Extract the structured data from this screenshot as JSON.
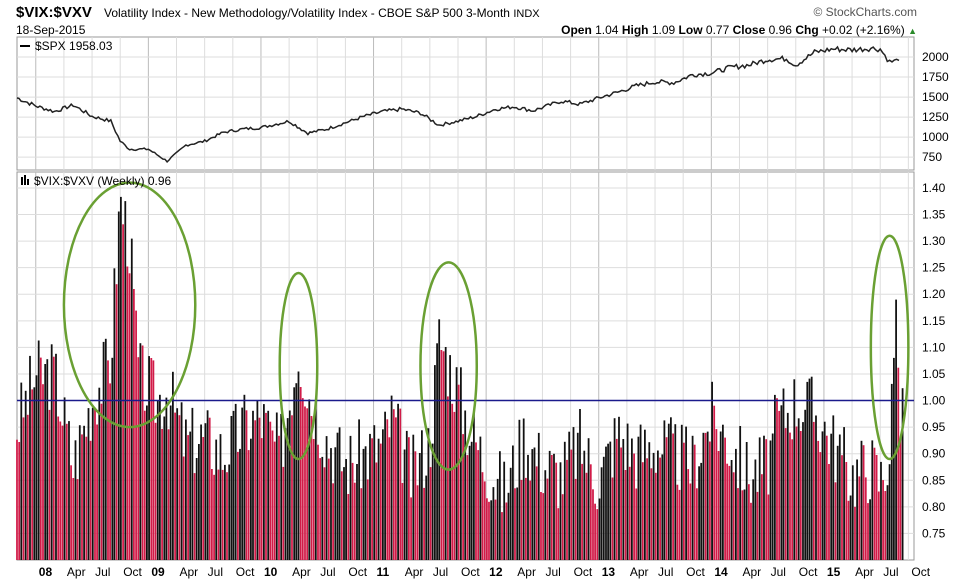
{
  "header": {
    "symbol": "$VIX:$VXV",
    "description": "Volatility Index - New Methodology/Volatility Index - CBOE S&P 500 3-Month",
    "exchange": "INDX",
    "date": "18-Sep-2015",
    "brand": "© StockCharts.com",
    "open_label": "Open",
    "open": "1.04",
    "high_label": "High",
    "high": "1.09",
    "low_label": "Low",
    "low": "0.77",
    "close_label": "Close",
    "close": "0.96",
    "chg_label": "Chg",
    "chg": "+0.02 (+2.16%)",
    "chg_arrow": "▲"
  },
  "colors": {
    "up": "#111111",
    "down": "#d11b48",
    "line": "#222222",
    "ref_line": "#1a1a8c",
    "circle": "#6aa033",
    "grid": "#dddddd"
  },
  "chart_data": [
    {
      "type": "line",
      "legend": "$SPX 1958.03",
      "y_ticks": [
        750,
        1000,
        1250,
        1500,
        1750,
        2000
      ],
      "ylim": [
        640,
        2200
      ],
      "x_range": [
        "2007-11",
        "2015-10"
      ],
      "x": [
        "2007-11",
        "2008-01",
        "2008-03",
        "2008-05",
        "2008-07",
        "2008-09",
        "2008-10",
        "2008-11",
        "2009-01",
        "2009-03",
        "2009-05",
        "2009-07",
        "2009-09",
        "2009-11",
        "2010-01",
        "2010-04",
        "2010-06",
        "2010-08",
        "2010-10",
        "2010-12",
        "2011-02",
        "2011-04",
        "2011-06",
        "2011-08",
        "2011-10",
        "2011-12",
        "2012-02",
        "2012-04",
        "2012-06",
        "2012-09",
        "2012-11",
        "2013-01",
        "2013-03",
        "2013-05",
        "2013-07",
        "2013-09",
        "2013-11",
        "2014-01",
        "2014-03",
        "2014-05",
        "2014-07",
        "2014-09",
        "2014-10",
        "2014-12",
        "2015-02",
        "2015-04",
        "2015-06",
        "2015-07",
        "2015-08",
        "2015-09"
      ],
      "values": [
        1490,
        1390,
        1320,
        1400,
        1260,
        1200,
        950,
        850,
        850,
        700,
        900,
        950,
        1060,
        1100,
        1120,
        1200,
        1050,
        1100,
        1180,
        1260,
        1320,
        1350,
        1300,
        1150,
        1200,
        1260,
        1350,
        1380,
        1330,
        1450,
        1410,
        1490,
        1560,
        1640,
        1690,
        1680,
        1780,
        1800,
        1870,
        1900,
        1970,
        1980,
        1900,
        2060,
        2100,
        2090,
        2110,
        2100,
        1940,
        1958
      ]
    },
    {
      "type": "bar",
      "legend": "$VIX:$VXV (Weekly) 0.96",
      "last_value": 0.96,
      "y_ticks": [
        0.75,
        0.8,
        0.85,
        0.9,
        0.95,
        1.0,
        1.05,
        1.1,
        1.15,
        1.2,
        1.25,
        1.3,
        1.35,
        1.4
      ],
      "ylim": [
        0.7,
        1.43
      ],
      "reference_line": 1.0,
      "x_labels": [
        "08",
        "Apr",
        "Jul",
        "Oct",
        "09",
        "Apr",
        "Jul",
        "Oct",
        "10",
        "Apr",
        "Jul",
        "Oct",
        "11",
        "Apr",
        "Jul",
        "Oct",
        "12",
        "Apr",
        "Jul",
        "Oct",
        "13",
        "Apr",
        "Jul",
        "Oct",
        "14",
        "Apr",
        "Jul",
        "Oct",
        "15",
        "Apr",
        "Jul",
        "Oct"
      ],
      "bold_x_labels": [
        "08",
        "09",
        "10",
        "11",
        "12",
        "13",
        "14",
        "15"
      ],
      "x_range": [
        "2007-11",
        "2015-10"
      ],
      "week_anchors": [
        {
          "date": "2007-11",
          "v": 0.95
        },
        {
          "date": "2008-01",
          "v": 1.05
        },
        {
          "date": "2008-03",
          "v": 1.05
        },
        {
          "date": "2008-05",
          "v": 0.88
        },
        {
          "date": "2008-07",
          "v": 1.0
        },
        {
          "date": "2008-09",
          "v": 1.08
        },
        {
          "date": "2008-10",
          "v": 1.38
        },
        {
          "date": "2008-11",
          "v": 1.3
        },
        {
          "date": "2008-12",
          "v": 1.05
        },
        {
          "date": "2009-02",
          "v": 1.0
        },
        {
          "date": "2009-03",
          "v": 1.02
        },
        {
          "date": "2009-05",
          "v": 0.92
        },
        {
          "date": "2009-07",
          "v": 0.93
        },
        {
          "date": "2009-09",
          "v": 0.9
        },
        {
          "date": "2009-11",
          "v": 0.95
        },
        {
          "date": "2010-01",
          "v": 0.97
        },
        {
          "date": "2010-03",
          "v": 0.9
        },
        {
          "date": "2010-05",
          "v": 1.1
        },
        {
          "date": "2010-06",
          "v": 1.02
        },
        {
          "date": "2010-08",
          "v": 0.93
        },
        {
          "date": "2010-10",
          "v": 0.88
        },
        {
          "date": "2010-12",
          "v": 0.9
        },
        {
          "date": "2011-02",
          "v": 0.92
        },
        {
          "date": "2011-03",
          "v": 0.97
        },
        {
          "date": "2011-05",
          "v": 0.86
        },
        {
          "date": "2011-07",
          "v": 0.92
        },
        {
          "date": "2011-08",
          "v": 1.12
        },
        {
          "date": "2011-10",
          "v": 1.02
        },
        {
          "date": "2011-11",
          "v": 0.96
        },
        {
          "date": "2012-01",
          "v": 0.88
        },
        {
          "date": "2012-03",
          "v": 0.83
        },
        {
          "date": "2012-05",
          "v": 0.93
        },
        {
          "date": "2012-07",
          "v": 0.88
        },
        {
          "date": "2012-09",
          "v": 0.86
        },
        {
          "date": "2012-11",
          "v": 0.92
        },
        {
          "date": "2013-01",
          "v": 0.85
        },
        {
          "date": "2013-03",
          "v": 0.94
        },
        {
          "date": "2013-05",
          "v": 0.9
        },
        {
          "date": "2013-07",
          "v": 0.92
        },
        {
          "date": "2013-09",
          "v": 0.9
        },
        {
          "date": "2013-11",
          "v": 0.88
        },
        {
          "date": "2014-01",
          "v": 0.97
        },
        {
          "date": "2014-03",
          "v": 0.92
        },
        {
          "date": "2014-05",
          "v": 0.86
        },
        {
          "date": "2014-07",
          "v": 0.88
        },
        {
          "date": "2014-08",
          "v": 0.96
        },
        {
          "date": "2014-10",
          "v": 1.0
        },
        {
          "date": "2014-12",
          "v": 0.98
        },
        {
          "date": "2015-02",
          "v": 0.92
        },
        {
          "date": "2015-04",
          "v": 0.86
        },
        {
          "date": "2015-06",
          "v": 0.88
        },
        {
          "date": "2015-07",
          "v": 0.85
        },
        {
          "date": "2015-08",
          "v": 0.9
        },
        {
          "date": "2015-08-24",
          "v": 1.19
        },
        {
          "date": "2015-09",
          "v": 0.96
        }
      ],
      "annotations": [
        {
          "type": "ellipse",
          "center": [
            "2008-11",
            1.1
          ],
          "span_x": [
            "2008-04",
            "2009-06"
          ],
          "span_y": [
            0.95,
            1.41
          ]
        },
        {
          "type": "ellipse",
          "center": [
            "2010-05",
            1.0
          ],
          "span_x": [
            "2010-03",
            "2010-07"
          ],
          "span_y": [
            0.89,
            1.24
          ]
        },
        {
          "type": "ellipse",
          "center": [
            "2011-09",
            1.0
          ],
          "span_x": [
            "2011-06",
            "2011-12"
          ],
          "span_y": [
            0.87,
            1.26
          ]
        },
        {
          "type": "ellipse",
          "center": [
            "2015-08",
            1.0
          ],
          "span_x": [
            "2015-06",
            "2015-10"
          ],
          "span_y": [
            0.89,
            1.31
          ]
        }
      ]
    }
  ]
}
